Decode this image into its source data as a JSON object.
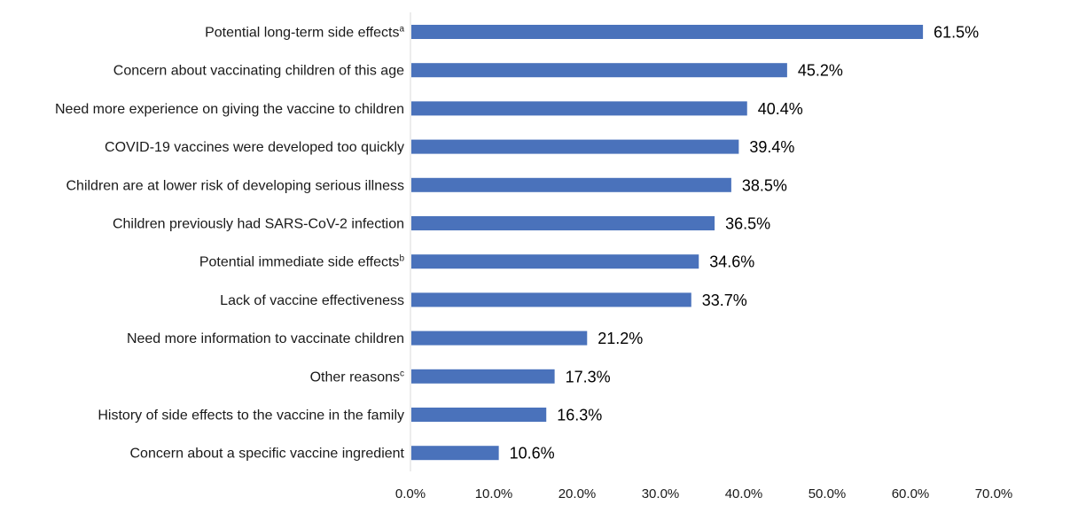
{
  "chart_data": {
    "type": "bar",
    "orientation": "horizontal",
    "title": "",
    "xlabel": "",
    "ylabel": "",
    "xlim": [
      0,
      70
    ],
    "x_ticks": [
      "0.0%",
      "10.0%",
      "20.0%",
      "30.0%",
      "40.0%",
      "50.0%",
      "60.0%",
      "70.0%"
    ],
    "grid": false,
    "legend": "none",
    "bar_color": "#4a72bb",
    "categories": [
      {
        "label": "Potential long-term side effects",
        "sup": "a"
      },
      {
        "label": "Concern about vaccinating children of this age",
        "sup": ""
      },
      {
        "label": "Need more experience on giving the vaccine to children",
        "sup": ""
      },
      {
        "label": "COVID-19 vaccines were developed too quickly",
        "sup": ""
      },
      {
        "label": "Children are at lower risk of developing serious illness",
        "sup": ""
      },
      {
        "label": "Children previously had SARS-CoV-2 infection",
        "sup": ""
      },
      {
        "label": "Potential immediate side effects",
        "sup": "b"
      },
      {
        "label": "Lack of vaccine effectiveness",
        "sup": ""
      },
      {
        "label": "Need more information to vaccinate children",
        "sup": ""
      },
      {
        "label": "Other reasons",
        "sup": "c"
      },
      {
        "label": "History of side effects to the vaccine in the family",
        "sup": ""
      },
      {
        "label": "Concern about a specific vaccine ingredient",
        "sup": ""
      }
    ],
    "values": [
      61.5,
      45.2,
      40.4,
      39.4,
      38.5,
      36.5,
      34.6,
      33.7,
      21.2,
      17.3,
      16.3,
      10.6
    ],
    "value_labels": [
      "61.5%",
      "45.2%",
      "40.4%",
      "39.4%",
      "38.5%",
      "36.5%",
      "34.6%",
      "33.7%",
      "21.2%",
      "17.3%",
      "16.3%",
      "10.6%"
    ]
  }
}
